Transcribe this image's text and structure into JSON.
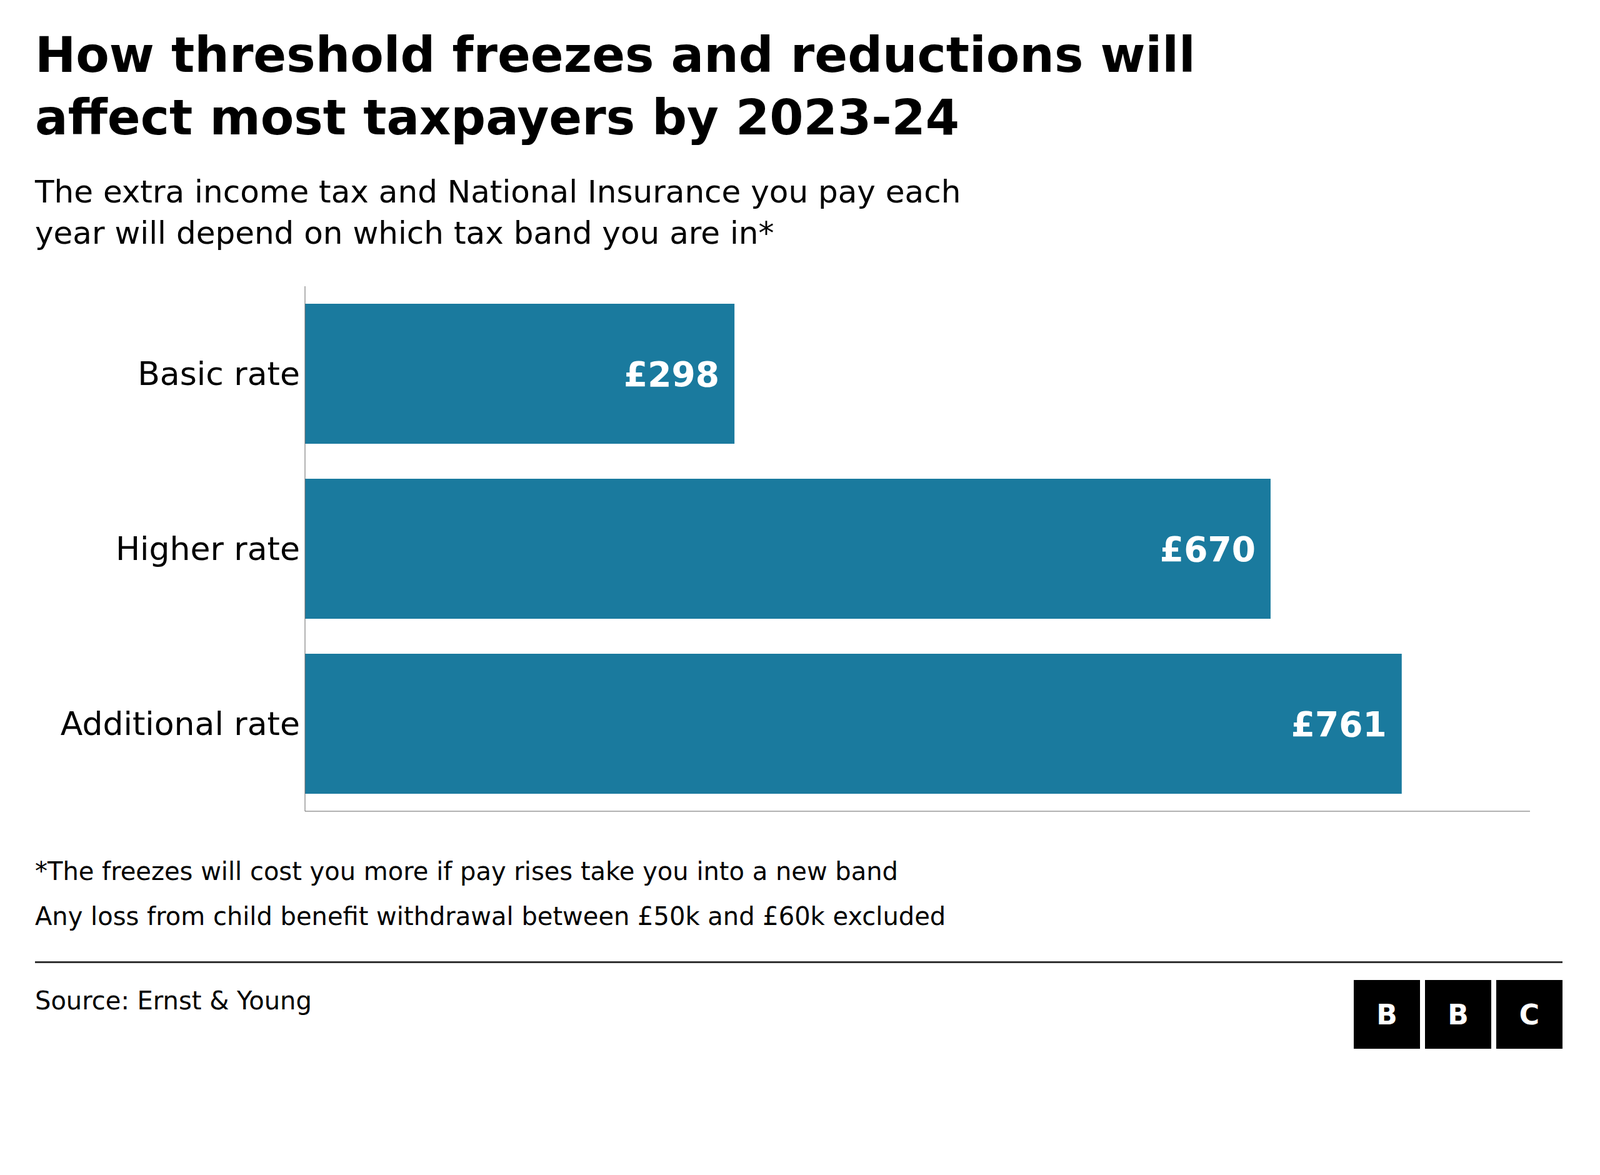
{
  "chart_data": {
    "type": "bar",
    "orientation": "horizontal",
    "title": [
      "How threshold freezes and reductions will",
      "affect most taxpayers by 2023-24"
    ],
    "subtitle": [
      "The extra income tax and National Insurance you pay each",
      "year will depend on which tax band you are in*"
    ],
    "categories": [
      "Basic rate",
      "Higher rate",
      "Additional rate"
    ],
    "values": [
      298,
      670,
      761
    ],
    "value_labels": [
      "£298",
      "£670",
      "£761"
    ],
    "data_labels": true,
    "color": "#1a7a9e",
    "xlim": [
      0,
      850
    ],
    "tick_labels": "y",
    "grid": false,
    "footnotes": [
      "*The freezes will cost you more if pay rises take you into a new band",
      "Any loss from child benefit withdrawal between £50k and £60k excluded"
    ],
    "source": "Source: Ernst & Young",
    "logo": "BBC"
  }
}
